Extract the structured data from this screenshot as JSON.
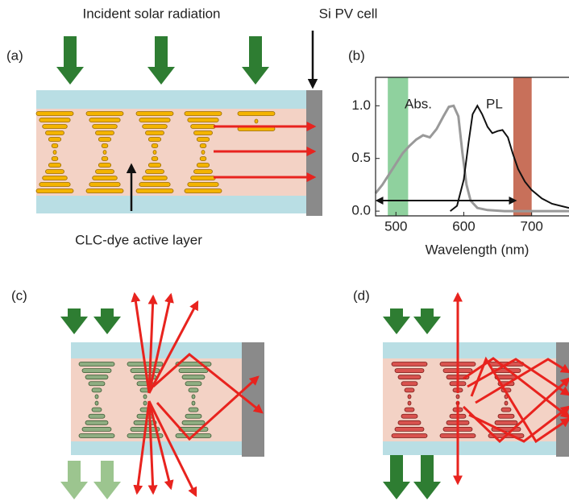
{
  "panels": [
    "(a)",
    "(b)",
    "(c)",
    "(d)"
  ],
  "annotations": {
    "incident": "Incident solar radiation",
    "pv": "Si PV cell",
    "layer": "CLC-dye active layer"
  },
  "chart_data": {
    "type": "line",
    "series": [
      {
        "name": "Abs.",
        "color": "#999999",
        "x": [
          470,
          480,
          490,
          500,
          510,
          520,
          530,
          540,
          550,
          560,
          570,
          578,
          585,
          592,
          598,
          604,
          610,
          620,
          635,
          660,
          700,
          755
        ],
        "values": [
          0.17,
          0.25,
          0.35,
          0.45,
          0.55,
          0.62,
          0.68,
          0.72,
          0.7,
          0.78,
          0.9,
          0.99,
          1.0,
          0.9,
          0.55,
          0.25,
          0.1,
          0.03,
          0.01,
          0.0,
          0.0,
          0.0
        ]
      },
      {
        "name": "PL",
        "color": "#111111",
        "x": [
          580,
          590,
          600,
          607,
          613,
          620,
          627,
          635,
          642,
          650,
          657,
          665,
          672,
          680,
          690,
          700,
          715,
          730,
          755
        ],
        "values": [
          0.0,
          0.05,
          0.3,
          0.65,
          0.92,
          1.0,
          0.92,
          0.8,
          0.74,
          0.76,
          0.77,
          0.7,
          0.55,
          0.4,
          0.28,
          0.2,
          0.12,
          0.07,
          0.03
        ]
      }
    ],
    "xlabel": "Wavelength (nm)",
    "xlim": [
      470,
      755
    ],
    "ylim": [
      -0.045,
      1.27
    ],
    "xticks": [
      500,
      600,
      700
    ],
    "yticks": [
      {
        "value": 0,
        "label": "0.0"
      },
      0.5,
      {
        "value": 1,
        "label": "1.0"
      }
    ],
    "bands": [
      {
        "range": [
          488,
          518
        ],
        "color": "#8fd19e"
      },
      {
        "range": [
          673,
          700
        ],
        "color": "#c8705a"
      }
    ],
    "arrow": {
      "x": [
        472,
        676
      ],
      "y": 0.1
    }
  }
}
